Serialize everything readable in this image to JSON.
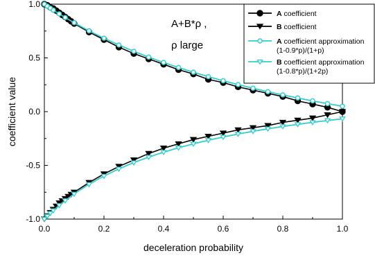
{
  "chart_data": {
    "type": "line",
    "title": "",
    "xlabel": "deceleration probability",
    "ylabel": "coefficient value",
    "xlim": [
      0.0,
      1.0
    ],
    "ylim": [
      -1.0,
      1.0
    ],
    "x_ticks": [
      0.0,
      0.2,
      0.4,
      0.6,
      0.8,
      1.0
    ],
    "x_tick_labels": [
      "0.0",
      "0.2",
      "0.4",
      "0.6",
      "0.8",
      "1.0"
    ],
    "y_ticks": [
      -1.0,
      -0.5,
      0.0,
      0.5,
      1.0
    ],
    "y_tick_labels": [
      "-1.0",
      "-0.5",
      "0.0",
      "0.5",
      "1.0"
    ],
    "grid": false,
    "legend_position": "top-right",
    "annotation": {
      "line1": "A+B*ρ ,",
      "line2": "ρ large"
    },
    "series": [
      {
        "name": "A coefficient",
        "name_prefix": "A",
        "name_rest": " coefficient",
        "color": "#000000",
        "marker": "circle",
        "x": [
          0.0,
          0.01,
          0.02,
          0.03,
          0.04,
          0.05,
          0.06,
          0.07,
          0.08,
          0.09,
          0.1,
          0.15,
          0.2,
          0.25,
          0.3,
          0.35,
          0.4,
          0.45,
          0.5,
          0.55,
          0.6,
          0.65,
          0.7,
          0.75,
          0.8,
          0.85,
          0.9,
          0.95,
          1.0
        ],
        "y": [
          1.0,
          0.99,
          0.97,
          0.96,
          0.94,
          0.92,
          0.9,
          0.88,
          0.86,
          0.84,
          0.82,
          0.74,
          0.67,
          0.6,
          0.54,
          0.49,
          0.44,
          0.39,
          0.35,
          0.3,
          0.27,
          0.23,
          0.2,
          0.17,
          0.14,
          0.1,
          0.07,
          0.04,
          0.0
        ]
      },
      {
        "name": "B coefficient",
        "name_prefix": "B",
        "name_rest": " coefficient",
        "color": "#000000",
        "marker": "triangle-down",
        "x": [
          0.0,
          0.01,
          0.02,
          0.03,
          0.04,
          0.05,
          0.06,
          0.07,
          0.08,
          0.09,
          0.1,
          0.15,
          0.2,
          0.25,
          0.3,
          0.35,
          0.4,
          0.45,
          0.5,
          0.55,
          0.6,
          0.65,
          0.7,
          0.75,
          0.8,
          0.85,
          0.9,
          0.95,
          1.0
        ],
        "y": [
          -1.0,
          -0.97,
          -0.94,
          -0.91,
          -0.88,
          -0.85,
          -0.83,
          -0.81,
          -0.79,
          -0.77,
          -0.75,
          -0.66,
          -0.58,
          -0.51,
          -0.45,
          -0.39,
          -0.34,
          -0.3,
          -0.26,
          -0.23,
          -0.2,
          -0.17,
          -0.15,
          -0.13,
          -0.1,
          -0.08,
          -0.06,
          -0.03,
          0.0
        ]
      },
      {
        "name": "A coefficient approximation (1-0.9*p)/(1+p)",
        "name_prefix": "A",
        "name_rest": " coefficient approximation",
        "name_line2": "(1-0.9*p)/(1+p)",
        "color": "#33cccc",
        "marker": "circle-small",
        "formula": "A"
      },
      {
        "name": "B coefficient approximation (1-0.8*p)/(1+2p)",
        "name_prefix": "B",
        "name_rest": " coefficient approximation",
        "name_line2": "(1-0.8*p)/(1+2p)",
        "color": "#33cccc",
        "marker": "triangle-down-small",
        "formula": "B"
      }
    ]
  }
}
